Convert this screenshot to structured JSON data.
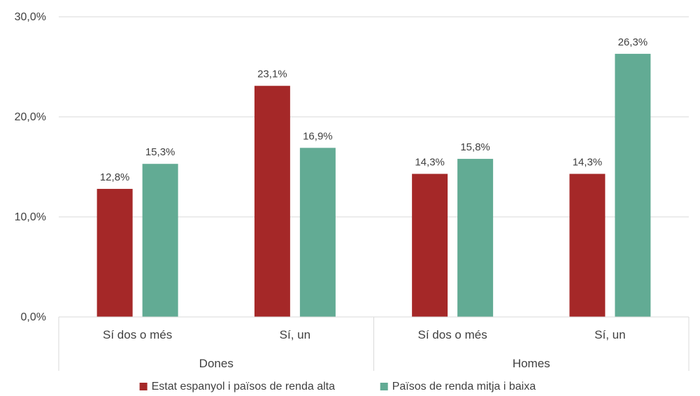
{
  "chart_data": {
    "type": "bar",
    "groups": [
      {
        "label": "Dones",
        "categories": [
          "Sí dos o més",
          "Sí, un"
        ]
      },
      {
        "label": "Homes",
        "categories": [
          "Sí dos o més",
          "Sí, un"
        ]
      }
    ],
    "categories": [
      "Sí dos o més",
      "Sí, un",
      "Sí dos o més",
      "Sí, un"
    ],
    "series": [
      {
        "name": "Estat espanyol i països de renda alta",
        "color": "#a52828",
        "values": [
          12.8,
          23.1,
          14.3,
          14.3
        ],
        "labels": [
          "12,8%",
          "23,1%",
          "14,3%",
          "14,3%"
        ]
      },
      {
        "name": "Països de renda mitja i baixa",
        "color": "#62ab94",
        "values": [
          15.3,
          16.9,
          15.8,
          26.3
        ],
        "labels": [
          "15,3%",
          "16,9%",
          "15,8%",
          "26,3%"
        ]
      }
    ],
    "yticks": [
      0,
      10,
      20,
      30
    ],
    "ytick_labels": [
      "0,0%",
      "10,0%",
      "20,0%",
      "30,0%"
    ],
    "ylim": [
      0,
      30
    ],
    "grid": true,
    "legend": "bottom",
    "title": "",
    "xlabel": "",
    "ylabel": ""
  }
}
